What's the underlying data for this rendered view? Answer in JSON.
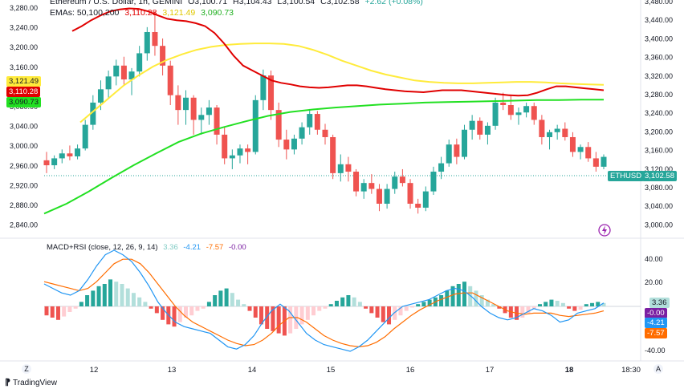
{
  "header": {
    "symbol_title": "Ethereum / U.S. Dollar, 1h, GEMINI",
    "o_label": "O",
    "o_value": "3,100.71",
    "h_label": "H",
    "h_value": "3,104.43",
    "l_label": "L",
    "l_value": "3,100.54",
    "c_label": "C",
    "c_value": "3,102.58",
    "change": "+2.62 (+0.08%)",
    "emas_label": "EMAs: 50,100,200",
    "ema50_value": "3,110.28",
    "ema100_value": "3,121.49",
    "ema200_value": "3,090.73",
    "macd_label": "MACD+RSI (close, 12, 26, 9, 14)",
    "macd_v1": "3.36",
    "macd_v2": "-4.21",
    "macd_v3": "-7.57",
    "macd_v4": "-0.00"
  },
  "badges": {
    "ema100_badge": "3,121.49",
    "ema50_badge": "3,110.28",
    "ema200_badge": "3,090.73",
    "ethusd_label": "ETHUSD",
    "price_badge": "3,102.58",
    "macd_b1": "3.36",
    "macd_b2": "-0.00",
    "macd_b3": "-4.21",
    "macd_b4": "-7.57"
  },
  "footer": {
    "brand": "TradingView",
    "z_button": "Z",
    "a_button": "A"
  },
  "colors": {
    "up": "#26a69a",
    "down": "#ef5350",
    "ema50": "#e00000",
    "ema100": "#ffeb3b",
    "ema200": "#22e022",
    "macd": "#2196f3",
    "signal": "#ff6d00",
    "purple": "#7b1fa2"
  },
  "chart_data": [
    {
      "type": "candlestick",
      "title": "Ethereum / U.S. Dollar, 1h, GEMINI",
      "left_axis_ticks": [
        "3,280.00",
        "3,240.00",
        "3,200.00",
        "3,160.00",
        "3,120.00",
        "3,080.00",
        "3,040.00",
        "3,000.00",
        "2,960.00",
        "2,920.00",
        "2,880.00",
        "2,840.00"
      ],
      "right_axis_ticks": [
        "3,480.00",
        "3,440.00",
        "3,400.00",
        "3,360.00",
        "3,320.00",
        "3,280.00",
        "3,240.00",
        "3,200.00",
        "3,160.00",
        "3,120.00",
        "3,080.00",
        "3,040.00",
        "3,000.00"
      ],
      "x_ticks": [
        "12",
        "13",
        "14",
        "15",
        "16",
        "17",
        "18",
        "18:30"
      ],
      "ylim": [
        2824,
        3288
      ],
      "candles_ohlc": [
        [
          2968,
          2985,
          2942,
          2958
        ],
        [
          2958,
          2978,
          2950,
          2972
        ],
        [
          2972,
          2990,
          2962,
          2982
        ],
        [
          2982,
          2998,
          2968,
          2976
        ],
        [
          2976,
          3000,
          2970,
          2992
        ],
        [
          2992,
          3050,
          2988,
          3040
        ],
        [
          3040,
          3100,
          3030,
          3085
        ],
        [
          3085,
          3130,
          3070,
          3112
        ],
        [
          3112,
          3150,
          3095,
          3138
        ],
        [
          3138,
          3172,
          3120,
          3160
        ],
        [
          3160,
          3178,
          3120,
          3132
        ],
        [
          3132,
          3155,
          3100,
          3148
        ],
        [
          3148,
          3200,
          3138,
          3185
        ],
        [
          3185,
          3238,
          3170,
          3228
        ],
        [
          3228,
          3270,
          3180,
          3200
        ],
        [
          3200,
          3215,
          3140,
          3160
        ],
        [
          3160,
          3170,
          3080,
          3100
        ],
        [
          3100,
          3120,
          3040,
          3070
        ],
        [
          3070,
          3110,
          3040,
          3095
        ],
        [
          3095,
          3100,
          3020,
          3050
        ],
        [
          3050,
          3075,
          3020,
          3060
        ],
        [
          3060,
          3090,
          3040,
          3075
        ],
        [
          3075,
          3080,
          3000,
          3020
        ],
        [
          3020,
          3035,
          2960,
          2972
        ],
        [
          2972,
          2990,
          2950,
          2978
        ],
        [
          2978,
          3000,
          2962,
          2992
        ],
        [
          2992,
          3000,
          2960,
          2985
        ],
        [
          2985,
          3100,
          2980,
          3090
        ],
        [
          3090,
          3152,
          3070,
          3140
        ],
        [
          3140,
          3150,
          3050,
          3070
        ],
        [
          3070,
          3085,
          2995,
          3010
        ],
        [
          3010,
          3030,
          2970,
          2990
        ],
        [
          2990,
          3020,
          2980,
          3012
        ],
        [
          3012,
          3045,
          3000,
          3035
        ],
        [
          3035,
          3072,
          3020,
          3062
        ],
        [
          3062,
          3068,
          3020,
          3030
        ],
        [
          3030,
          3042,
          3000,
          3015
        ],
        [
          3015,
          3020,
          2930,
          2942
        ],
        [
          2942,
          2980,
          2925,
          2960
        ],
        [
          2960,
          2975,
          2925,
          2945
        ],
        [
          2945,
          2950,
          2895,
          2905
        ],
        [
          2905,
          2930,
          2890,
          2922
        ],
        [
          2922,
          2940,
          2900,
          2910
        ],
        [
          2910,
          2920,
          2865,
          2880
        ],
        [
          2880,
          2920,
          2870,
          2910
        ],
        [
          2910,
          2945,
          2900,
          2935
        ],
        [
          2935,
          2950,
          2915,
          2922
        ],
        [
          2922,
          2930,
          2870,
          2880
        ],
        [
          2880,
          2890,
          2860,
          2872
        ],
        [
          2872,
          2915,
          2865,
          2905
        ],
        [
          2905,
          2955,
          2898,
          2945
        ],
        [
          2945,
          2975,
          2930,
          2962
        ],
        [
          2962,
          3010,
          2955,
          3000
        ],
        [
          3000,
          3012,
          2960,
          2975
        ],
        [
          2975,
          3040,
          2970,
          3030
        ],
        [
          3030,
          3060,
          3010,
          3048
        ],
        [
          3048,
          3055,
          3010,
          3020
        ],
        [
          3020,
          3045,
          3000,
          3038
        ],
        [
          3038,
          3095,
          3030,
          3085
        ],
        [
          3085,
          3105,
          3070,
          3080
        ],
        [
          3080,
          3100,
          3050,
          3060
        ],
        [
          3060,
          3075,
          3040,
          3065
        ],
        [
          3065,
          3085,
          3055,
          3078
        ],
        [
          3078,
          3085,
          3040,
          3050
        ],
        [
          3050,
          3060,
          3000,
          3015
        ],
        [
          3015,
          3030,
          2990,
          3025
        ],
        [
          3025,
          3040,
          3010,
          3032
        ],
        [
          3032,
          3045,
          3008,
          3015
        ],
        [
          3015,
          3025,
          2975,
          2985
        ],
        [
          2985,
          3000,
          2970,
          2995
        ],
        [
          2995,
          3005,
          2965,
          2972
        ],
        [
          2972,
          2985,
          2945,
          2955
        ],
        [
          2955,
          2980,
          2950,
          2975
        ]
      ],
      "ema50": [
        3230,
        3240,
        3252,
        3262,
        3270,
        3274,
        3276,
        3275,
        3270,
        3262,
        3255,
        3252,
        3250,
        3246,
        3240,
        3226,
        3205,
        3180,
        3160,
        3150,
        3140,
        3130,
        3125,
        3122,
        3118,
        3116,
        3115,
        3116,
        3118,
        3120,
        3120,
        3118,
        3115,
        3112,
        3110,
        3108,
        3107,
        3106,
        3108,
        3110,
        3110,
        3110,
        3108,
        3106,
        3104,
        3102,
        3100,
        3099,
        3100,
        3105,
        3112,
        3118,
        3118,
        3116,
        3114,
        3112,
        3110
      ],
      "ema100": [
        3045,
        3070,
        3095,
        3120,
        3140,
        3158,
        3172,
        3183,
        3192,
        3198,
        3202,
        3204,
        3205,
        3205,
        3204,
        3200,
        3192,
        3182,
        3170,
        3160,
        3150,
        3142,
        3136,
        3130,
        3127,
        3125,
        3124,
        3124,
        3125,
        3126,
        3127,
        3127,
        3126,
        3124,
        3123,
        3122,
        3121
      ],
      "ema200": [
        2860,
        2880,
        2905,
        2932,
        2958,
        2982,
        3005,
        3022,
        3035,
        3047,
        3058,
        3066,
        3071,
        3075,
        3078,
        3081,
        3083,
        3085,
        3086,
        3087,
        3088,
        3089,
        3090,
        3090,
        3091,
        3091
      ]
    },
    {
      "type": "macd",
      "title": "MACD+RSI (close, 12, 26, 9, 14)",
      "axis_ticks": [
        "40.00",
        "20.00",
        "-40.00"
      ],
      "ylim": [
        -44,
        47
      ],
      "histogram": [
        -8,
        -10,
        -12,
        -9,
        -5,
        -2,
        4,
        10,
        14,
        18,
        20,
        24,
        22,
        20,
        16,
        12,
        8,
        4,
        -2,
        -6,
        -12,
        -16,
        -18,
        -14,
        -10,
        -8,
        -4,
        -2,
        4,
        10,
        14,
        16,
        12,
        6,
        2,
        -4,
        -10,
        -16,
        -20,
        -22,
        -24,
        -26,
        -24,
        -20,
        -16,
        -12,
        -8,
        -4,
        -2,
        2,
        5,
        8,
        10,
        8,
        4,
        -2,
        -6,
        -10,
        -14,
        -16,
        -12,
        -8,
        -4,
        -1,
        2,
        4,
        6,
        8,
        10,
        14,
        18,
        20,
        22,
        18,
        14,
        10,
        6,
        2,
        -2,
        -6,
        -10,
        -12,
        -10,
        -6,
        -2,
        2,
        4,
        6,
        5,
        3,
        -2,
        -4,
        -3,
        2,
        3,
        4,
        3
      ],
      "macd_line": [
        20,
        16,
        12,
        10,
        14,
        24,
        36,
        46,
        50,
        46,
        40,
        30,
        18,
        4,
        -6,
        -14,
        -18,
        -20,
        -22,
        -24,
        -30,
        -36,
        -38,
        -34,
        -26,
        -14,
        -4,
        2,
        -4,
        -14,
        -24,
        -30,
        -34,
        -36,
        -38,
        -40,
        -36,
        -30,
        -22,
        -14,
        -6,
        0,
        2,
        4,
        6,
        10,
        14,
        16,
        14,
        8,
        0,
        -6,
        -10,
        -12,
        -10,
        -6,
        -2,
        -4,
        -8,
        -14,
        -12,
        -6,
        -4,
        -2,
        3
      ],
      "signal_line": [
        22,
        20,
        18,
        16,
        14,
        16,
        22,
        30,
        38,
        42,
        42,
        38,
        30,
        20,
        10,
        0,
        -8,
        -14,
        -18,
        -22,
        -26,
        -30,
        -33,
        -35,
        -34,
        -30,
        -24,
        -16,
        -10,
        -10,
        -14,
        -20,
        -26,
        -30,
        -33,
        -35,
        -36,
        -35,
        -32,
        -27,
        -20,
        -14,
        -8,
        -3,
        1,
        5,
        8,
        11,
        12,
        12,
        8,
        4,
        0,
        -4,
        -6,
        -7,
        -6,
        -6,
        -6,
        -8,
        -9,
        -8,
        -7,
        -6,
        -4
      ]
    }
  ]
}
